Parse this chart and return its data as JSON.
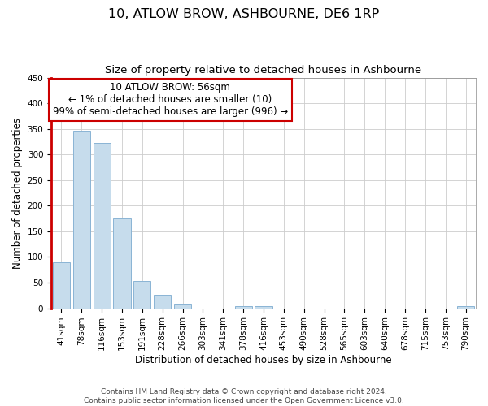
{
  "title": "10, ATLOW BROW, ASHBOURNE, DE6 1RP",
  "subtitle": "Size of property relative to detached houses in Ashbourne",
  "xlabel": "Distribution of detached houses by size in Ashbourne",
  "ylabel": "Number of detached properties",
  "bar_values": [
    90,
    347,
    322,
    175,
    53,
    26,
    8,
    0,
    0,
    4,
    4,
    0,
    0,
    0,
    0,
    0,
    0,
    0,
    0,
    0,
    4
  ],
  "bar_labels": [
    "41sqm",
    "78sqm",
    "116sqm",
    "153sqm",
    "191sqm",
    "228sqm",
    "266sqm",
    "303sqm",
    "341sqm",
    "378sqm",
    "416sqm",
    "453sqm",
    "490sqm",
    "528sqm",
    "565sqm",
    "603sqm",
    "640sqm",
    "678sqm",
    "715sqm",
    "753sqm",
    "790sqm"
  ],
  "bar_color": "#c6dcec",
  "bar_edge_color": "#8ab4d4",
  "annotation_title": "10 ATLOW BROW: 56sqm",
  "annotation_line1": "← 1% of detached houses are smaller (10)",
  "annotation_line2": "99% of semi-detached houses are larger (996) →",
  "annotation_box_color": "#ffffff",
  "annotation_box_edge_color": "#cc0000",
  "marker_line_color": "#cc0000",
  "ylim": [
    0,
    450
  ],
  "yticks": [
    0,
    50,
    100,
    150,
    200,
    250,
    300,
    350,
    400,
    450
  ],
  "footer_line1": "Contains HM Land Registry data © Crown copyright and database right 2024.",
  "footer_line2": "Contains public sector information licensed under the Open Government Licence v3.0.",
  "bg_color": "#ffffff",
  "grid_color": "#cccccc",
  "title_fontsize": 11.5,
  "subtitle_fontsize": 9.5,
  "axis_label_fontsize": 8.5,
  "tick_fontsize": 7.5,
  "footer_fontsize": 6.5,
  "annotation_fontsize": 8.5
}
